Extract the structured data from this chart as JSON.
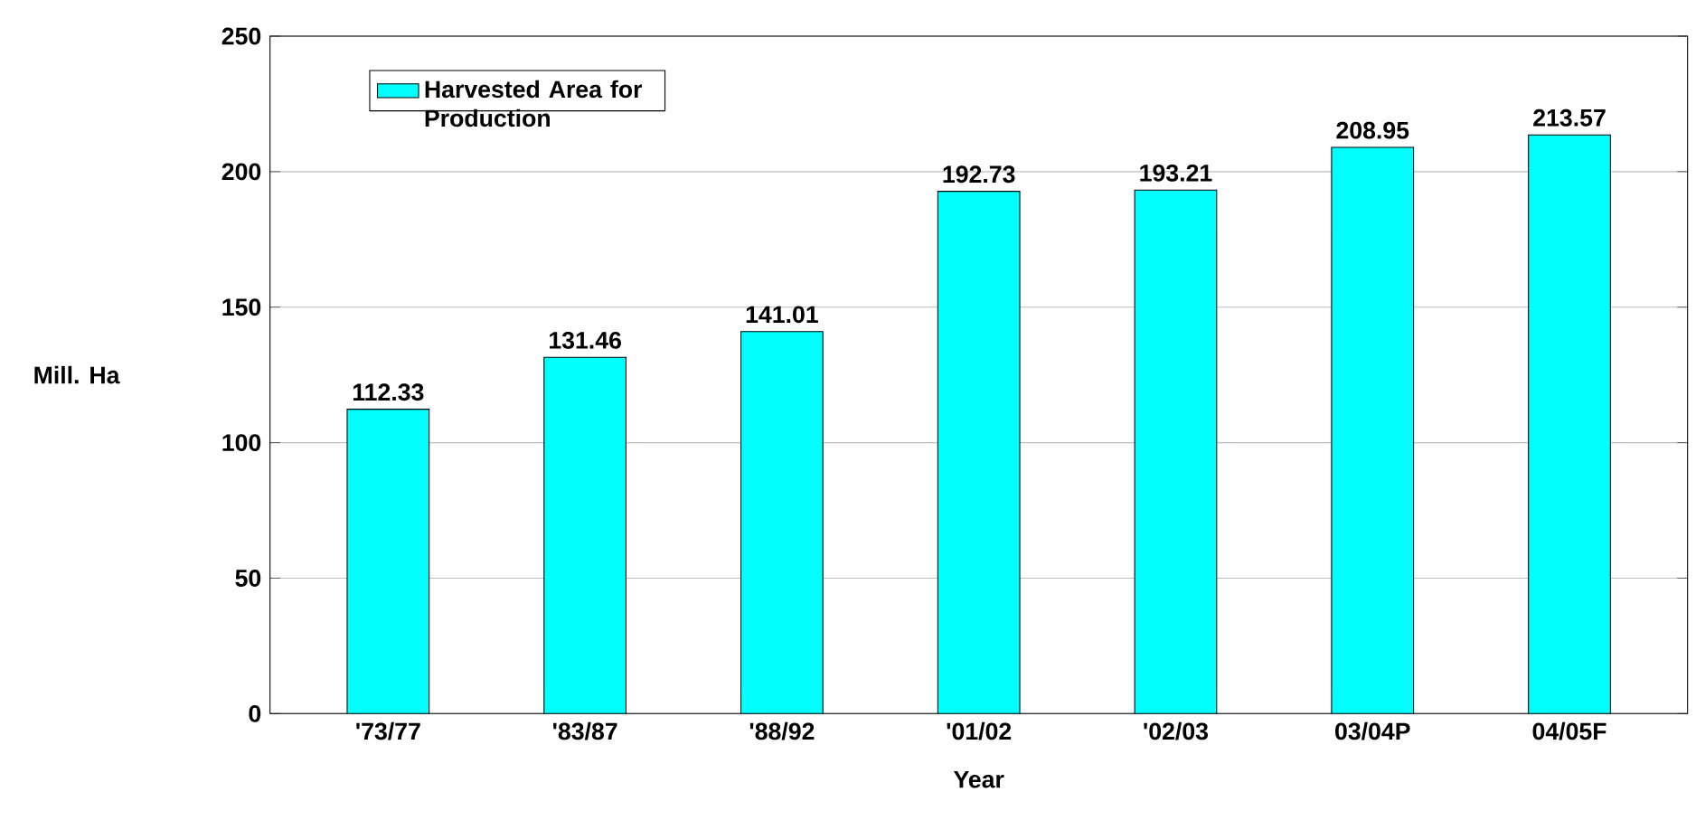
{
  "chart_data": {
    "type": "bar",
    "xlabel": "Year",
    "ylabel": "Mill. Ha",
    "categories": [
      "'73/77",
      "'83/87",
      "'88/92",
      "'01/02",
      "'02/03",
      "03/04P",
      "04/05F"
    ],
    "series": [
      {
        "name": "Harvested Area for Production",
        "color": "#00ffff",
        "values": [
          112.33,
          131.46,
          141.01,
          192.73,
          193.21,
          208.95,
          213.57
        ]
      }
    ],
    "ylim": [
      0,
      250
    ],
    "yticks": [
      0,
      50,
      100,
      150,
      200,
      250
    ],
    "grid": "y",
    "legend": "top left",
    "data_labels": true
  }
}
